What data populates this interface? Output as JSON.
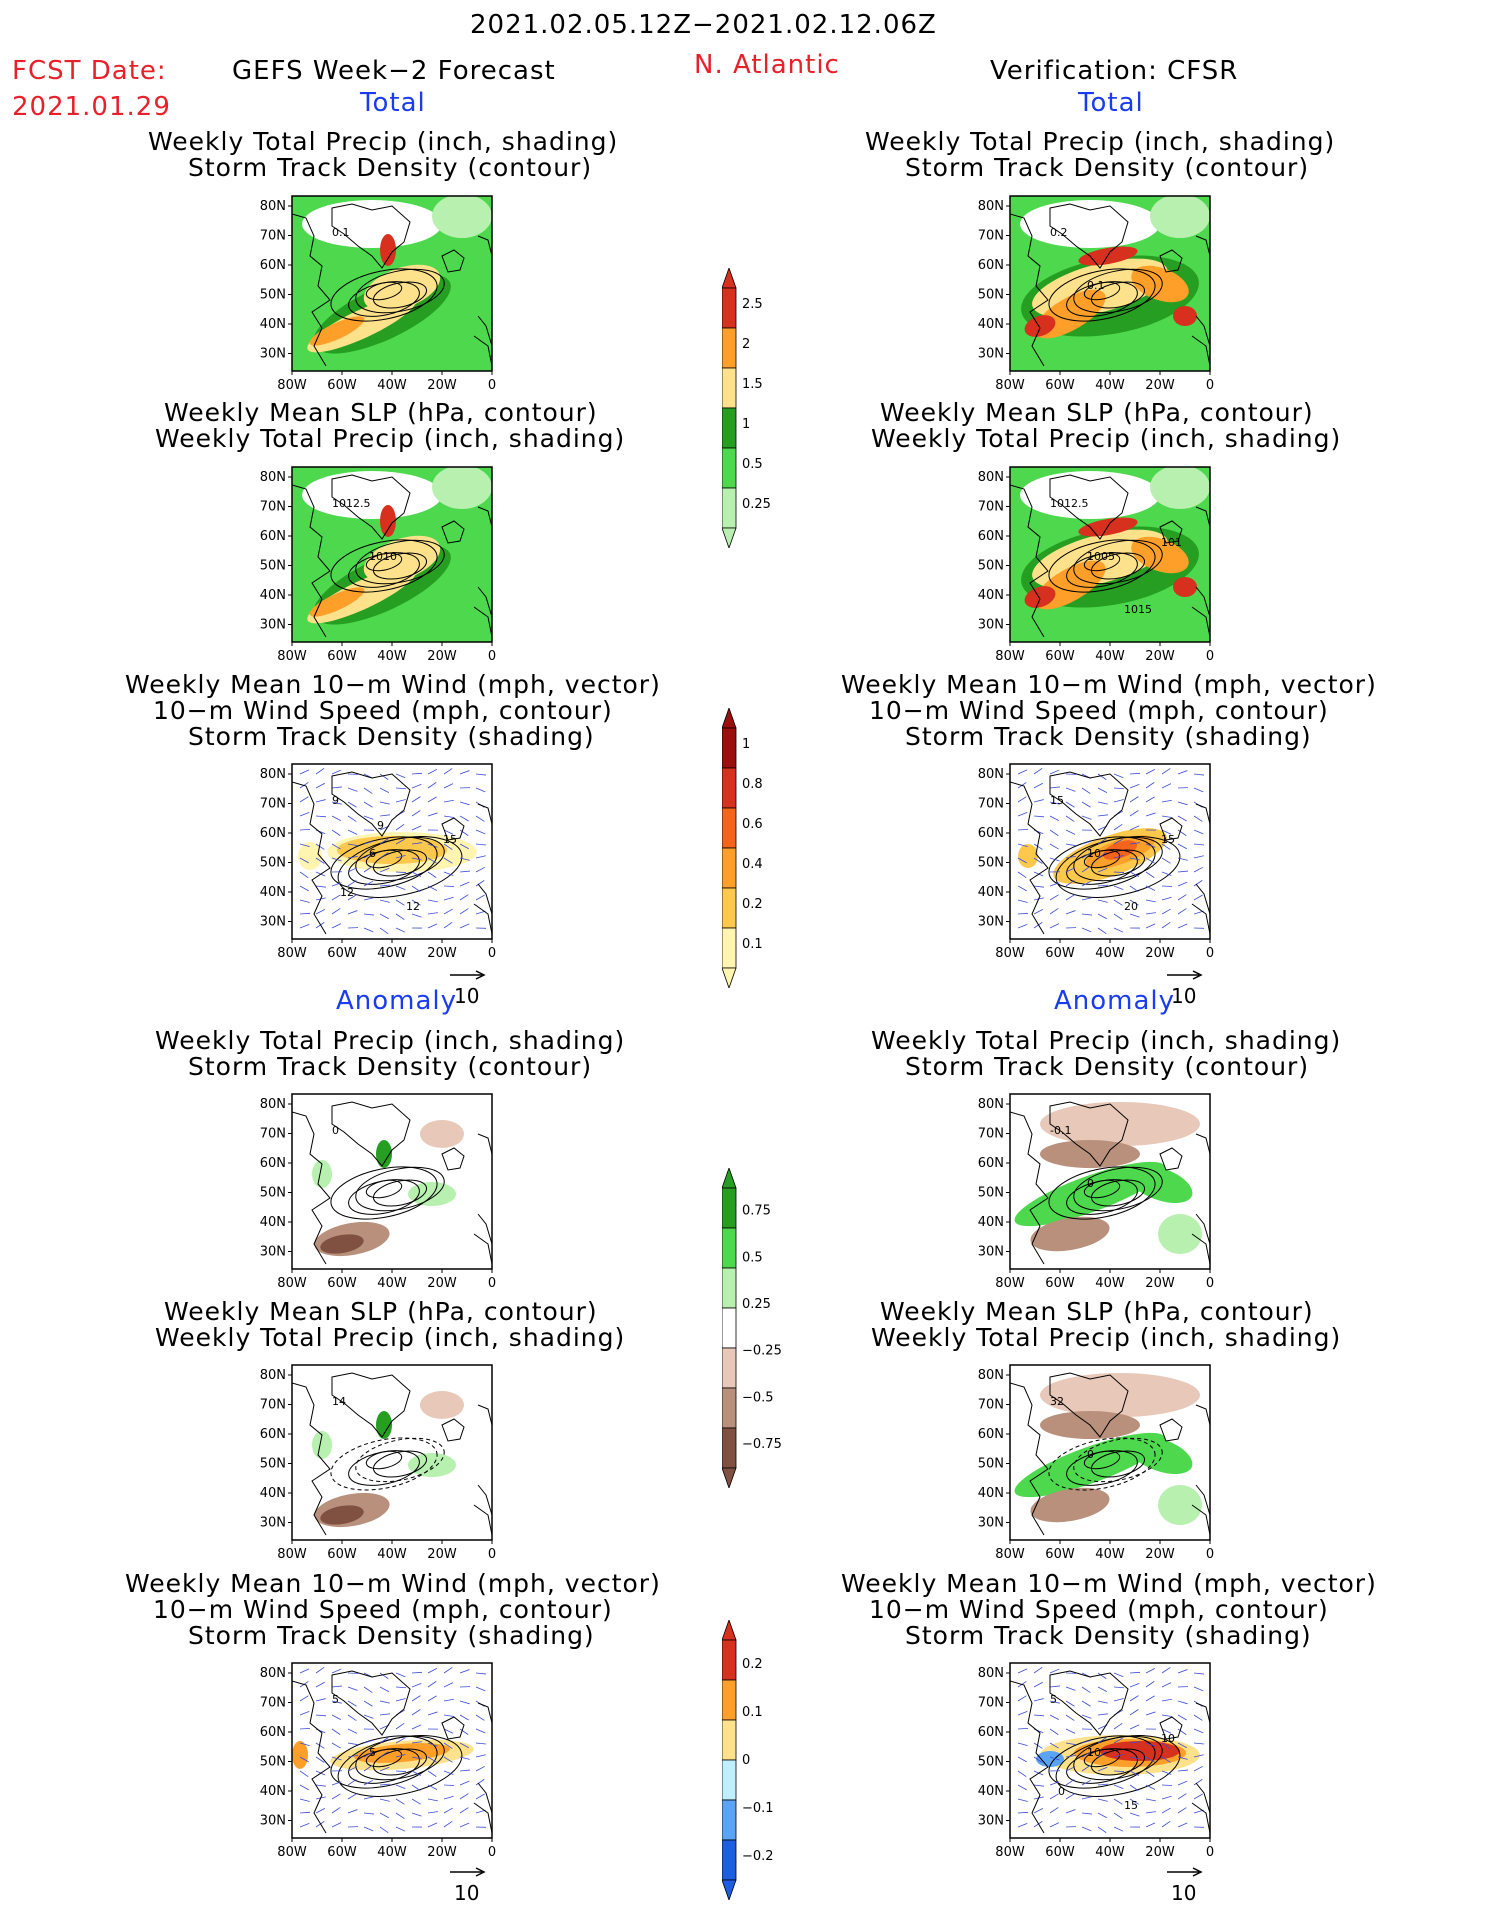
{
  "header": {
    "date_range": "2021.02.05.12Z−2021.02.12.06Z",
    "fcst_label": "FCST Date:",
    "fcst_date": "2021.01.29",
    "left_title": "GEFS Week−2 Forecast",
    "region": "N. Atlantic",
    "right_title": "Verification: CFSR"
  },
  "sections": {
    "total": "Total",
    "anomaly": "Anomaly"
  },
  "panel_titles": {
    "precip_track": [
      "Weekly Total Precip (inch, shading)",
      "Storm Track Density (contour)"
    ],
    "slp_precip": [
      "Weekly Mean SLP (hPa, contour)",
      "Weekly Total Precip (inch, shading)"
    ],
    "wind_track": [
      "Weekly Mean 10−m Wind (mph, vector)",
      "10−m Wind Speed (mph, contour)",
      "Storm Track Density (shading)"
    ]
  },
  "axes": {
    "lat_labels": [
      "80N",
      "70N",
      "60N",
      "50N",
      "40N",
      "30N"
    ],
    "lon_labels": [
      "80W",
      "60W",
      "40W",
      "20W",
      "0"
    ]
  },
  "vector_ref": "10",
  "contour_labels": {
    "fcst_precip": [
      "0.1"
    ],
    "cfsr_precip": [
      "0.2",
      "0.1"
    ],
    "fcst_slp": [
      "1012.5",
      "1010"
    ],
    "cfsr_slp": [
      "1012.5",
      "1005",
      "1015",
      "101"
    ],
    "fcst_wind": [
      "9",
      "6",
      "12",
      "15",
      "12",
      "9"
    ],
    "cfsr_wind": [
      "15",
      "10",
      "20",
      "15"
    ],
    "fcst_anom_precip": [
      "0"
    ],
    "cfsr_anom_precip": [
      "-0.1",
      "0"
    ],
    "fcst_anom_slp": [
      "14"
    ],
    "cfsr_anom_slp": [
      "32",
      "0"
    ],
    "fcst_anom_wind": [
      "5",
      "5"
    ],
    "cfsr_anom_wind": [
      "5",
      "10",
      "15",
      "10",
      "0"
    ]
  },
  "colorbars": {
    "precip_total": {
      "labels": [
        "2.5",
        "2",
        "1.5",
        "1",
        "0.5",
        "0.25"
      ],
      "colors": [
        "#d7301f",
        "#fe9f2a",
        "#fee28b",
        "#259e21",
        "#4dd84d",
        "#b8f0b0"
      ]
    },
    "track_total": {
      "labels": [
        "1",
        "0.8",
        "0.6",
        "0.4",
        "0.2",
        "0.1"
      ],
      "colors": [
        "#9b0e0e",
        "#d7301f",
        "#f4641c",
        "#fe9f2a",
        "#fec84c",
        "#fff4b0"
      ]
    },
    "precip_anom": {
      "labels": [
        "0.75",
        "0.5",
        "0.25",
        "−0.25",
        "−0.5",
        "−0.75"
      ],
      "colors": [
        "#259e21",
        "#4dd84d",
        "#b8f0b0",
        "#ffffff",
        "#e8c8b8",
        "#b8907c",
        "#805040"
      ]
    },
    "track_anom": {
      "labels": [
        "0.2",
        "0.1",
        "0",
        "−0.1",
        "−0.2"
      ],
      "colors": [
        "#d7301f",
        "#fe9f2a",
        "#fee28b",
        "#bfeffc",
        "#5ba4f5",
        "#1d5de0"
      ]
    }
  },
  "colors": {
    "header_red": "#e8202a",
    "section_blue": "#1a3cf0"
  }
}
